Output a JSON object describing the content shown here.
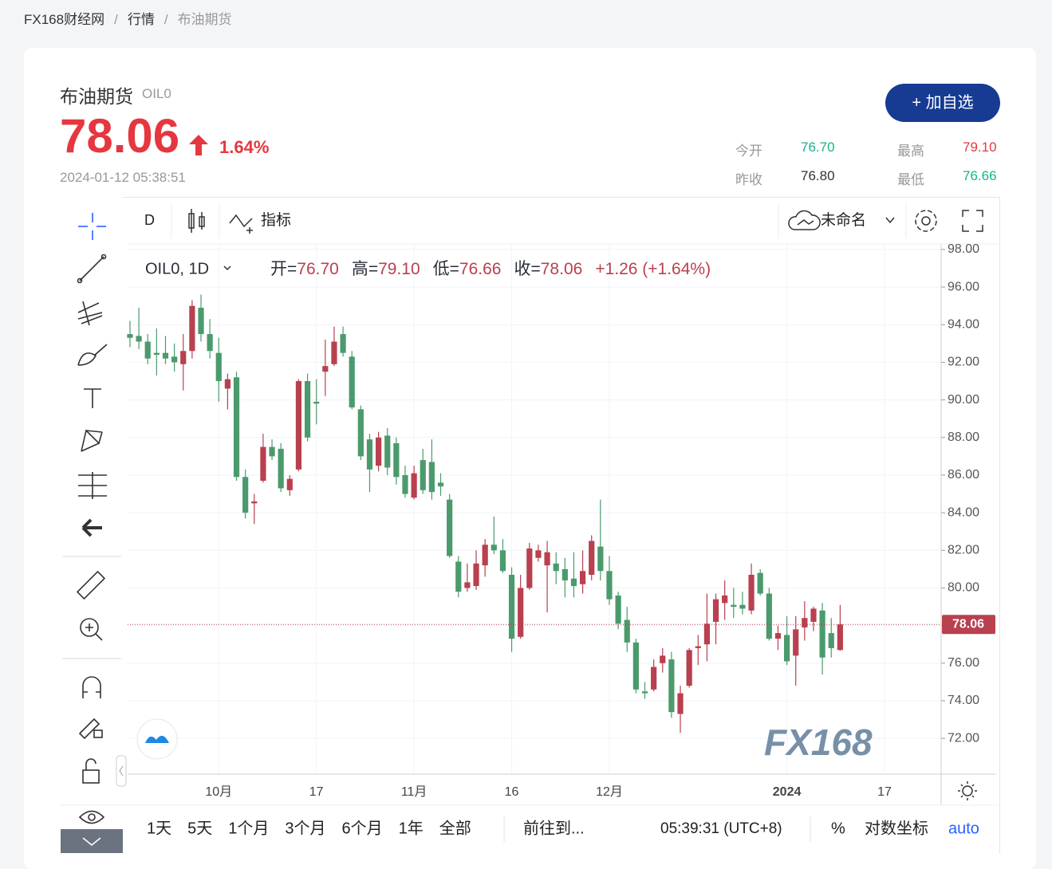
{
  "breadcrumb": [
    "FX168财经网",
    "行情",
    "布油期货"
  ],
  "header": {
    "name": "布油期货",
    "symbol": "OIL0",
    "price": "78.06",
    "change_pct": "1.64%",
    "time": "2024-01-12 05:38:51",
    "button": "+ 加自选",
    "stats": [
      {
        "label": "今开",
        "value": "76.70"
      },
      {
        "label": "最高",
        "value": "79.10"
      },
      {
        "label": "昨收",
        "value": "76.80"
      },
      {
        "label": "最低",
        "value": "76.66"
      }
    ]
  },
  "toolbar": {
    "interval": "D",
    "indicators": "指标",
    "layout": "未命名"
  },
  "legend": {
    "symbol": "OIL0, 1D",
    "items": [
      {
        "label": "开=",
        "value": "76.70"
      },
      {
        "label": "高=",
        "value": "79.10"
      },
      {
        "label": "低=",
        "value": "76.66"
      },
      {
        "label": "收=",
        "value": "78.06"
      }
    ],
    "change": "+1.26 (+1.64%)"
  },
  "chart_data": {
    "type": "candlestick",
    "watermark": "FX168",
    "up_color": "#b8404f",
    "down_color": "#4b9a6d",
    "categories": [
      null,
      null,
      null,
      null,
      null,
      null,
      null,
      null,
      null,
      null,
      "10月",
      null,
      null,
      null,
      null,
      null,
      null,
      null,
      null,
      null,
      null,
      "17",
      null,
      null,
      null,
      null,
      null,
      null,
      null,
      null,
      null,
      null,
      "11月",
      null,
      null,
      null,
      null,
      null,
      null,
      null,
      null,
      null,
      null,
      "16",
      null,
      null,
      null,
      null,
      null,
      null,
      null,
      null,
      null,
      null,
      "12月",
      null,
      null,
      null,
      null,
      null,
      null,
      null,
      null,
      null,
      null,
      null,
      null,
      null,
      null,
      null,
      null,
      null,
      null,
      null,
      "2024",
      null,
      null,
      null,
      null,
      null,
      null,
      null,
      null,
      null,
      null,
      "17",
      null,
      null,
      null,
      null,
      null
    ],
    "open": [
      93.5,
      93.4,
      93.1,
      92.5,
      92.5,
      92.3,
      91.9,
      92.6,
      94.9,
      93.5,
      92.5,
      90.6,
      91.2,
      85.9,
      84.5,
      85.7,
      87.5,
      87.4,
      85.2,
      86.3,
      91.0,
      89.9,
      91.5,
      91.9,
      93.5,
      92.3,
      89.5,
      87.9,
      86.5,
      88.1,
      87.7,
      86.0,
      84.8,
      86.8,
      86.7,
      85.6,
      84.7,
      81.4,
      80.0,
      80.1,
      81.2,
      82.3,
      82.0,
      80.7,
      77.4,
      80.0,
      81.6,
      81.2,
      81.3,
      81.0,
      80.5,
      80.2,
      80.7,
      82.2,
      80.9,
      79.6,
      78.3,
      77.1,
      74.5,
      74.6,
      76.0,
      76.2,
      73.3,
      74.8,
      76.8,
      77.0,
      78.2,
      79.2,
      79.1,
      79.1,
      78.8,
      80.8,
      79.7,
      77.3,
      77.5,
      76.4,
      77.9,
      78.2,
      78.8,
      77.6,
      76.7,
      null,
      null,
      null,
      null,
      null,
      null,
      null,
      null,
      null,
      null
    ],
    "high": [
      94.2,
      94.9,
      93.5,
      93.8,
      93.4,
      93.0,
      93.5,
      95.3,
      95.6,
      94.3,
      93.3,
      91.4,
      91.5,
      86.3,
      85.0,
      88.2,
      87.9,
      87.7,
      86.0,
      91.1,
      91.4,
      91.1,
      93.2,
      93.9,
      93.9,
      92.6,
      89.7,
      88.2,
      88.3,
      88.5,
      88.0,
      86.5,
      86.5,
      87.4,
      87.9,
      86.1,
      85.0,
      81.7,
      81.3,
      82.0,
      82.6,
      83.8,
      82.6,
      81.1,
      80.7,
      82.4,
      82.3,
      82.5,
      81.9,
      81.6,
      81.9,
      82.0,
      82.8,
      84.7,
      81.7,
      79.8,
      79.0,
      77.3,
      75.0,
      76.2,
      76.8,
      76.6,
      74.8,
      76.8,
      77.5,
      79.7,
      79.7,
      80.4,
      80.0,
      79.8,
      81.3,
      81.0,
      80.0,
      78.0,
      78.5,
      78.5,
      79.3,
      79.0,
      79.2,
      78.4,
      79.1,
      null,
      null,
      null,
      null,
      null,
      null,
      null,
      null,
      null,
      null
    ],
    "low": [
      92.8,
      92.7,
      91.9,
      91.3,
      91.9,
      91.5,
      90.5,
      92.2,
      93.1,
      92.2,
      89.9,
      89.5,
      85.7,
      83.7,
      83.4,
      85.6,
      86.8,
      85.1,
      84.9,
      86.2,
      87.8,
      88.7,
      90.2,
      91.8,
      92.3,
      89.5,
      86.8,
      85.1,
      86.2,
      86.0,
      85.5,
      84.8,
      84.7,
      85.0,
      84.7,
      84.9,
      81.6,
      79.5,
      79.8,
      79.9,
      80.6,
      81.8,
      80.8,
      76.6,
      77.3,
      79.9,
      81.4,
      78.7,
      80.2,
      79.5,
      79.5,
      79.7,
      80.4,
      80.4,
      79.1,
      77.8,
      76.6,
      74.4,
      74.1,
      74.5,
      75.5,
      73.1,
      72.3,
      74.7,
      75.9,
      76.1,
      77.0,
      78.3,
      78.4,
      78.6,
      78.6,
      79.6,
      77.2,
      76.7,
      75.9,
      74.8,
      77.2,
      77.7,
      75.4,
      76.3,
      76.66,
      null,
      null,
      null,
      null,
      null,
      null,
      null,
      null,
      null,
      null
    ],
    "close": [
      93.3,
      93.1,
      92.2,
      92.4,
      92.2,
      92.0,
      92.6,
      95.0,
      93.5,
      92.6,
      91.0,
      91.1,
      85.9,
      84.0,
      84.6,
      87.5,
      87.0,
      85.3,
      85.8,
      91.0,
      88.0,
      89.8,
      91.8,
      93.1,
      92.5,
      89.6,
      87.0,
      86.3,
      88.0,
      86.4,
      85.9,
      85.0,
      86.1,
      85.2,
      85.1,
      85.4,
      81.7,
      79.8,
      80.3,
      81.3,
      82.3,
      82.0,
      80.9,
      77.3,
      80.0,
      82.1,
      82.0,
      81.9,
      80.9,
      80.4,
      80.1,
      80.9,
      82.5,
      80.9,
      79.4,
      78.1,
      77.1,
      74.6,
      74.4,
      75.8,
      76.4,
      73.4,
      74.4,
      76.7,
      76.9,
      78.1,
      79.4,
      79.6,
      79.0,
      78.9,
      80.7,
      79.7,
      77.3,
      77.6,
      76.1,
      77.8,
      78.4,
      78.9,
      76.3,
      76.8,
      78.06,
      null,
      null,
      null,
      null,
      null,
      null,
      null,
      null,
      null,
      null
    ],
    "ylim": [
      70.1,
      98.25
    ],
    "yticks": [
      {
        "value": 72,
        "label": "72.00"
      },
      {
        "value": 74,
        "label": "74.00"
      },
      {
        "value": 76,
        "label": "76.00"
      },
      {
        "value": 78,
        "label": "78.00"
      },
      {
        "value": 80,
        "label": "80.00"
      },
      {
        "value": 82,
        "label": "82.00"
      },
      {
        "value": 84,
        "label": "84.00"
      },
      {
        "value": 86,
        "label": "86.00"
      },
      {
        "value": 88,
        "label": "88.00"
      },
      {
        "value": 90,
        "label": "90.00"
      },
      {
        "value": 92,
        "label": "92.00"
      },
      {
        "value": 94,
        "label": "94.00"
      },
      {
        "value": 96,
        "label": "96.00"
      },
      {
        "value": 98,
        "label": "98.00"
      }
    ],
    "grid": true
  },
  "bottom": {
    "ranges": [
      "1天",
      "5天",
      "1个月",
      "3个月",
      "6个月",
      "1年",
      "全部"
    ],
    "goto": "前往到...",
    "clock": "05:39:31 (UTC+8)",
    "percent": "%",
    "log": "对数坐标",
    "auto": "auto"
  }
}
